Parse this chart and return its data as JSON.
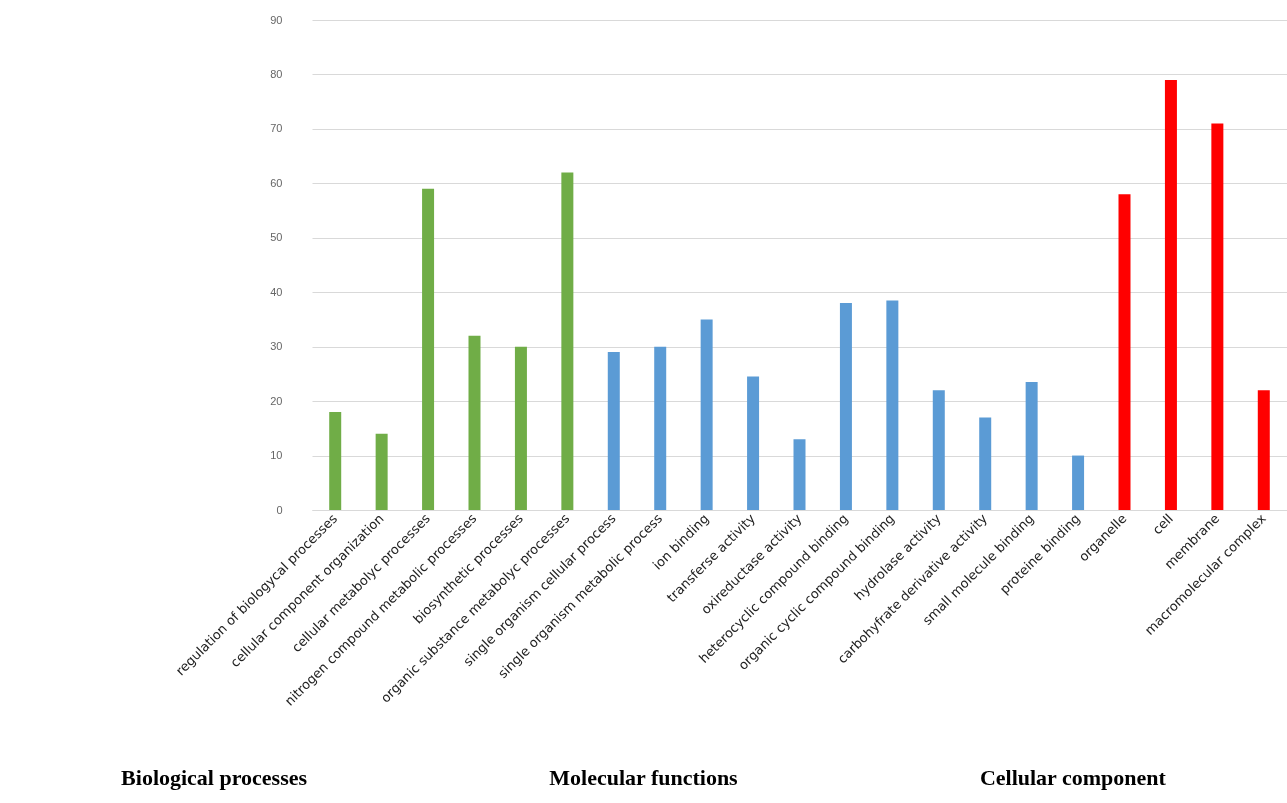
{
  "chart_data": {
    "type": "bar",
    "categories": [
      "regulation of biologycal processes",
      "cellular component organization",
      "cellular metabolyc processes",
      "nitrogen compound metabolic processes",
      "biosynthetic processes",
      "organic substance metabolyc processes",
      "single organism cellular process",
      "single organism metabolic process",
      "ion binding",
      "transferse activity",
      "oxireductase activity",
      "heterocyclic compound binding",
      "organic cyclic compound binding",
      "hydrolase activity",
      "carbohyfrate derivative activity",
      "small molecule binding",
      "proteine binding",
      "organelle",
      "cell",
      "membrane",
      "macromolecular complex"
    ],
    "values": [
      18,
      14,
      59,
      32,
      30,
      62,
      29,
      30,
      35,
      24.5,
      13,
      38,
      38.5,
      22,
      17,
      23.5,
      10,
      58,
      79,
      71,
      22
    ],
    "colors": [
      "#70ad47",
      "#70ad47",
      "#70ad47",
      "#70ad47",
      "#70ad47",
      "#70ad47",
      "#5b9bd5",
      "#5b9bd5",
      "#5b9bd5",
      "#5b9bd5",
      "#5b9bd5",
      "#5b9bd5",
      "#5b9bd5",
      "#5b9bd5",
      "#5b9bd5",
      "#5b9bd5",
      "#5b9bd5",
      "#ff0000",
      "#ff0000",
      "#ff0000",
      "#ff0000"
    ],
    "ylim": [
      0,
      90
    ],
    "yticks": [
      0,
      10,
      20,
      30,
      40,
      50,
      60,
      70,
      80,
      90
    ],
    "grid": "y",
    "annotations": [
      "Biological processes",
      "Molecular functions",
      "Cellular component"
    ]
  }
}
